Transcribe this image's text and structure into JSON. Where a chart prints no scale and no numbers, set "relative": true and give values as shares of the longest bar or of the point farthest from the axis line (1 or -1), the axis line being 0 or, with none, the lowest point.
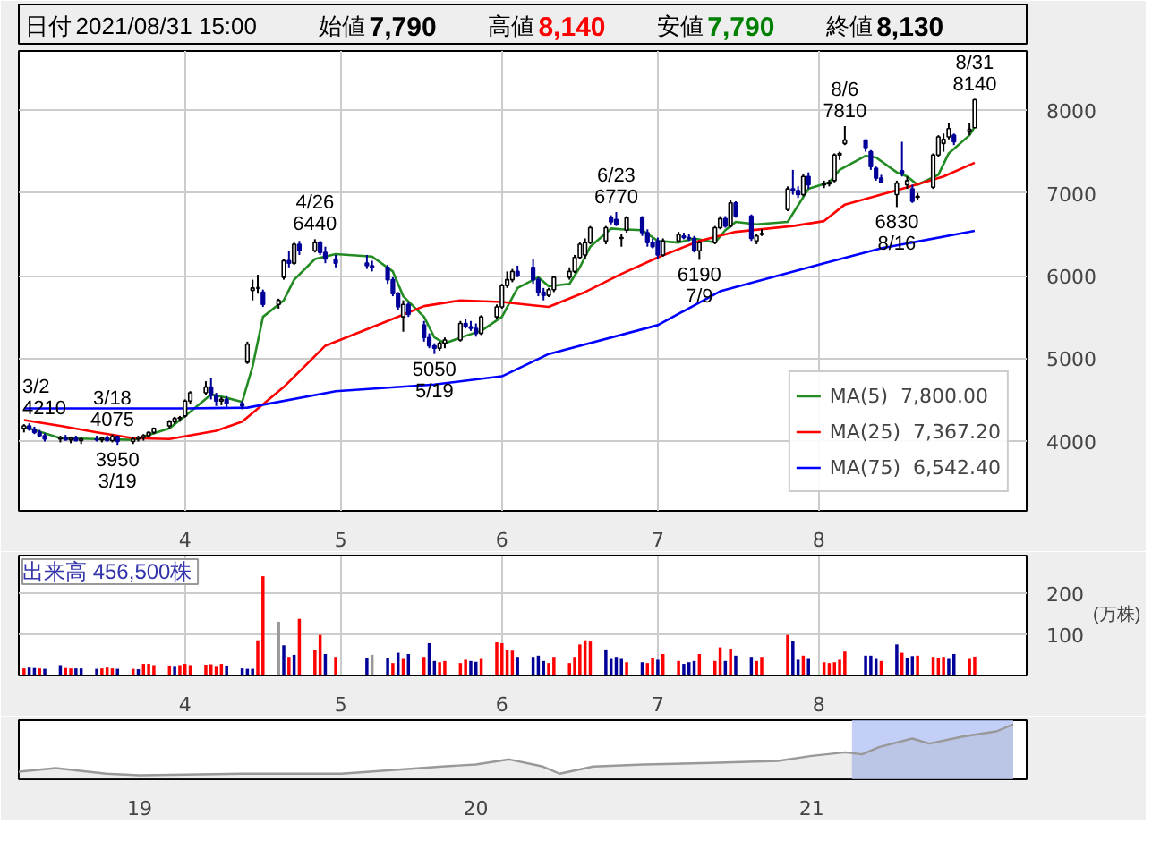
{
  "chart_data": [
    {
      "type": "other",
      "annotations": [
        "日付",
        "2021/08/31 15:00",
        "始値",
        "7,790",
        "高値",
        "8,140",
        "安値",
        "7,790",
        "終値",
        "8,130"
      ]
    },
    {
      "type": "candlestick",
      "xlim": [
        "2021-02-28",
        "2021-09-10"
      ],
      "ylim": [
        3150,
        8720
      ],
      "yticks": [
        4000,
        5000,
        6000,
        7000,
        8000
      ],
      "xticks": [
        {
          "value": "2021-04-01",
          "label": "4"
        },
        {
          "value": "2021-05-01",
          "label": "5"
        },
        {
          "value": "2021-06-01",
          "label": "6"
        },
        {
          "value": "2021-07-01",
          "label": "7"
        },
        {
          "value": "2021-08-01",
          "label": "8"
        }
      ],
      "grid": true,
      "legend": "bottom right",
      "x": [
        "2021-03-01",
        "2021-03-02",
        "2021-03-03",
        "2021-03-04",
        "2021-03-05",
        "2021-03-08",
        "2021-03-09",
        "2021-03-10",
        "2021-03-11",
        "2021-03-12",
        "2021-03-15",
        "2021-03-16",
        "2021-03-17",
        "2021-03-18",
        "2021-03-19",
        "2021-03-22",
        "2021-03-23",
        "2021-03-24",
        "2021-03-25",
        "2021-03-26",
        "2021-03-29",
        "2021-03-30",
        "2021-03-31",
        "2021-04-01",
        "2021-04-02",
        "2021-04-05",
        "2021-04-06",
        "2021-04-07",
        "2021-04-08",
        "2021-04-09",
        "2021-04-12",
        "2021-04-13",
        "2021-04-14",
        "2021-04-15",
        "2021-04-16",
        "2021-04-19",
        "2021-04-20",
        "2021-04-21",
        "2021-04-22",
        "2021-04-23",
        "2021-04-26",
        "2021-04-27",
        "2021-04-28",
        "2021-04-30",
        "2021-05-06",
        "2021-05-07",
        "2021-05-10",
        "2021-05-11",
        "2021-05-12",
        "2021-05-13",
        "2021-05-14",
        "2021-05-17",
        "2021-05-18",
        "2021-05-19",
        "2021-05-20",
        "2021-05-21",
        "2021-05-24",
        "2021-05-25",
        "2021-05-26",
        "2021-05-27",
        "2021-05-28",
        "2021-05-31",
        "2021-06-01",
        "2021-06-02",
        "2021-06-03",
        "2021-06-04",
        "2021-06-07",
        "2021-06-08",
        "2021-06-09",
        "2021-06-10",
        "2021-06-11",
        "2021-06-14",
        "2021-06-15",
        "2021-06-16",
        "2021-06-17",
        "2021-06-18",
        "2021-06-21",
        "2021-06-22",
        "2021-06-23",
        "2021-06-24",
        "2021-06-25",
        "2021-06-28",
        "2021-06-29",
        "2021-06-30",
        "2021-07-01",
        "2021-07-02",
        "2021-07-05",
        "2021-07-06",
        "2021-07-07",
        "2021-07-08",
        "2021-07-09",
        "2021-07-12",
        "2021-07-13",
        "2021-07-14",
        "2021-07-15",
        "2021-07-16",
        "2021-07-19",
        "2021-07-20",
        "2021-07-21",
        "2021-07-26",
        "2021-07-27",
        "2021-07-28",
        "2021-07-29",
        "2021-07-30",
        "2021-08-02",
        "2021-08-03",
        "2021-08-04",
        "2021-08-05",
        "2021-08-06",
        "2021-08-10",
        "2021-08-11",
        "2021-08-12",
        "2021-08-13",
        "2021-08-16",
        "2021-08-17",
        "2021-08-18",
        "2021-08-19",
        "2021-08-20",
        "2021-08-23",
        "2021-08-24",
        "2021-08-25",
        "2021-08-26",
        "2021-08-27",
        "2021-08-30",
        "2021-08-31"
      ],
      "ohlc": [
        [
          4150,
          4200,
          4100,
          4180
        ],
        [
          4180,
          4210,
          4120,
          4140
        ],
        [
          4140,
          4170,
          4080,
          4100
        ],
        [
          4100,
          4130,
          4040,
          4060
        ],
        [
          4060,
          4090,
          3990,
          4020
        ],
        [
          4020,
          4060,
          3980,
          4040
        ],
        [
          4040,
          4070,
          4000,
          4010
        ],
        [
          4010,
          4050,
          3970,
          4030
        ],
        [
          4030,
          4060,
          3990,
          4000
        ],
        [
          4000,
          4040,
          3960,
          4020
        ],
        [
          4020,
          4060,
          3990,
          4010
        ],
        [
          4010,
          4050,
          3980,
          4030
        ],
        [
          4030,
          4060,
          3990,
          4000
        ],
        [
          4000,
          4075,
          3980,
          4050
        ],
        [
          4050,
          4060,
          3950,
          3990
        ],
        [
          3990,
          4040,
          3960,
          4020
        ],
        [
          4020,
          4060,
          3990,
          4040
        ],
        [
          4040,
          4080,
          4000,
          4060
        ],
        [
          4060,
          4110,
          4040,
          4100
        ],
        [
          4100,
          4160,
          4080,
          4150
        ],
        [
          4180,
          4250,
          4150,
          4230
        ],
        [
          4230,
          4290,
          4200,
          4270
        ],
        [
          4270,
          4300,
          4230,
          4280
        ],
        [
          4300,
          4500,
          4280,
          4480
        ],
        [
          4480,
          4600,
          4450,
          4580
        ],
        [
          4580,
          4720,
          4550,
          4650
        ],
        [
          4650,
          4760,
          4500,
          4550
        ],
        [
          4550,
          4580,
          4420,
          4480
        ],
        [
          4480,
          4530,
          4430,
          4500
        ],
        [
          4500,
          4540,
          4410,
          4450
        ],
        [
          4450,
          4480,
          4380,
          4420
        ],
        [
          4950,
          5200,
          4930,
          5170
        ],
        [
          5820,
          5950,
          5700,
          5850
        ],
        [
          5850,
          6010,
          5780,
          5850
        ],
        [
          5800,
          5830,
          5620,
          5650
        ],
        [
          5650,
          5720,
          5600,
          5700
        ],
        [
          5980,
          6200,
          5950,
          6180
        ],
        [
          6180,
          6300,
          6100,
          6150
        ],
        [
          6150,
          6400,
          6130,
          6380
        ],
        [
          6380,
          6420,
          6250,
          6300
        ],
        [
          6300,
          6440,
          6280,
          6400
        ],
        [
          6400,
          6420,
          6250,
          6280
        ],
        [
          6280,
          6350,
          6150,
          6200
        ],
        [
          6200,
          6250,
          6100,
          6150
        ],
        [
          6150,
          6250,
          6080,
          6120
        ],
        [
          6120,
          6180,
          6050,
          6100
        ],
        [
          6100,
          6130,
          5900,
          5950
        ],
        [
          5950,
          5980,
          5750,
          5780
        ],
        [
          5780,
          5800,
          5580,
          5620
        ],
        [
          5500,
          5700,
          5320,
          5650
        ],
        [
          5650,
          5680,
          5500,
          5530
        ],
        [
          5400,
          5450,
          5200,
          5250
        ],
        [
          5250,
          5300,
          5120,
          5150
        ],
        [
          5150,
          5180,
          5050,
          5120
        ],
        [
          5120,
          5200,
          5090,
          5180
        ],
        [
          5180,
          5250,
          5120,
          5220
        ],
        [
          5220,
          5450,
          5200,
          5420
        ],
        [
          5420,
          5480,
          5360,
          5380
        ],
        [
          5380,
          5450,
          5330,
          5360
        ],
        [
          5360,
          5420,
          5260,
          5300
        ],
        [
          5300,
          5520,
          5280,
          5500
        ],
        [
          5500,
          5650,
          5480,
          5620
        ],
        [
          5620,
          5900,
          5600,
          5880
        ],
        [
          5880,
          6050,
          5850,
          5950
        ],
        [
          5950,
          6080,
          5920,
          6050
        ],
        [
          6050,
          6120,
          5980,
          6000
        ],
        [
          6100,
          6200,
          5900,
          5950
        ],
        [
          5950,
          5980,
          5750,
          5800
        ],
        [
          5800,
          5850,
          5700,
          5760
        ],
        [
          5760,
          5850,
          5740,
          5830
        ],
        [
          5830,
          6000,
          5800,
          5980
        ],
        [
          5980,
          6100,
          5950,
          6050
        ],
        [
          6050,
          6250,
          6030,
          6220
        ],
        [
          6220,
          6400,
          6200,
          6380
        ],
        [
          6250,
          6450,
          6200,
          6400
        ],
        [
          6400,
          6600,
          6380,
          6580
        ],
        [
          6420,
          6600,
          6380,
          6580
        ],
        [
          6700,
          6730,
          6620,
          6650
        ],
        [
          6680,
          6770,
          6600,
          6620
        ],
        [
          6450,
          6500,
          6350,
          6460
        ],
        [
          6550,
          6720,
          6520,
          6700
        ],
        [
          6700,
          6720,
          6480,
          6520
        ],
        [
          6520,
          6560,
          6350,
          6400
        ],
        [
          6400,
          6450,
          6330,
          6350
        ],
        [
          6420,
          6460,
          6200,
          6250
        ],
        [
          6250,
          6450,
          6230,
          6420
        ],
        [
          6420,
          6530,
          6400,
          6500
        ],
        [
          6480,
          6520,
          6440,
          6460
        ],
        [
          6460,
          6500,
          6420,
          6450
        ],
        [
          6450,
          6480,
          6280,
          6300
        ],
        [
          6300,
          6420,
          6190,
          6400
        ],
        [
          6400,
          6600,
          6380,
          6580
        ],
        [
          6580,
          6720,
          6560,
          6690
        ],
        [
          6690,
          6720,
          6580,
          6600
        ],
        [
          6600,
          6920,
          6580,
          6880
        ],
        [
          6880,
          6900,
          6700,
          6720
        ],
        [
          6720,
          6740,
          6420,
          6450
        ],
        [
          6420,
          6500,
          6380,
          6480
        ],
        [
          6500,
          6560,
          6480,
          6510
        ],
        [
          6800,
          7080,
          6780,
          7050
        ],
        [
          7050,
          7280,
          6980,
          7030
        ],
        [
          7030,
          7080,
          6940,
          6980
        ],
        [
          6980,
          7230,
          6960,
          7200
        ],
        [
          7200,
          7250,
          7050,
          7100
        ],
        [
          7100,
          7150,
          7060,
          7110
        ],
        [
          7110,
          7160,
          7080,
          7130
        ],
        [
          7150,
          7480,
          7130,
          7460
        ],
        [
          7460,
          7500,
          7400,
          7480
        ],
        [
          7600,
          7810,
          7580,
          7640
        ],
        [
          7640,
          7650,
          7500,
          7550
        ],
        [
          7500,
          7520,
          7280,
          7320
        ],
        [
          7300,
          7320,
          7150,
          7180
        ],
        [
          7180,
          7220,
          7120,
          7130
        ],
        [
          6980,
          7150,
          6830,
          7120
        ],
        [
          7270,
          7620,
          7200,
          7240
        ],
        [
          7100,
          7200,
          7050,
          7150
        ],
        [
          7050,
          7100,
          6880,
          6900
        ],
        [
          6950,
          7000,
          6920,
          6960
        ],
        [
          7070,
          7480,
          7050,
          7460
        ],
        [
          7460,
          7700,
          7440,
          7680
        ],
        [
          7600,
          7720,
          7500,
          7650
        ],
        [
          7680,
          7850,
          7650,
          7780
        ],
        [
          7700,
          7720,
          7580,
          7620
        ],
        [
          7750,
          7850,
          7700,
          7770
        ],
        [
          7790,
          8140,
          7790,
          8130
        ]
      ],
      "series": [
        {
          "name": "MA(5)  7,800.00",
          "type": "line",
          "color": "#228b22",
          "x": [
            "2021-03-01",
            "2021-03-08",
            "2021-03-15",
            "2021-03-22",
            "2021-03-29",
            "2021-04-02",
            "2021-04-06",
            "2021-04-09",
            "2021-04-12",
            "2021-04-14",
            "2021-04-16",
            "2021-04-20",
            "2021-04-22",
            "2021-04-26",
            "2021-04-30",
            "2021-05-07",
            "2021-05-11",
            "2021-05-13",
            "2021-05-17",
            "2021-05-19",
            "2021-05-21",
            "2021-05-25",
            "2021-05-28",
            "2021-06-01",
            "2021-06-04",
            "2021-06-08",
            "2021-06-10",
            "2021-06-14",
            "2021-06-16",
            "2021-06-18",
            "2021-06-22",
            "2021-06-24",
            "2021-06-28",
            "2021-07-01",
            "2021-07-05",
            "2021-07-08",
            "2021-07-12",
            "2021-07-14",
            "2021-07-16",
            "2021-07-20",
            "2021-07-26",
            "2021-07-28",
            "2021-07-30",
            "2021-08-03",
            "2021-08-05",
            "2021-08-10",
            "2021-08-12",
            "2021-08-16",
            "2021-08-18",
            "2021-08-20",
            "2021-08-24",
            "2021-08-26",
            "2021-08-30",
            "2021-08-31"
          ],
          "values": [
            4170,
            4030,
            4020,
            4010,
            4150,
            4350,
            4560,
            4520,
            4470,
            4900,
            5500,
            5700,
            5950,
            6200,
            6260,
            6230,
            6050,
            5750,
            5500,
            5250,
            5180,
            5270,
            5330,
            5500,
            5850,
            5980,
            5870,
            5900,
            6100,
            6350,
            6570,
            6560,
            6550,
            6420,
            6400,
            6450,
            6400,
            6550,
            6650,
            6620,
            6650,
            6850,
            7050,
            7130,
            7280,
            7450,
            7430,
            7250,
            7200,
            7100,
            7220,
            7480,
            7700,
            7800
          ]
        },
        {
          "name": "MA(25)  7,367.20",
          "type": "line",
          "color": "#ff0000",
          "x": [
            "2021-03-01",
            "2021-03-08",
            "2021-03-15",
            "2021-03-22",
            "2021-03-29",
            "2021-04-07",
            "2021-04-12",
            "2021-04-20",
            "2021-04-28",
            "2021-05-10",
            "2021-05-17",
            "2021-05-24",
            "2021-06-01",
            "2021-06-07",
            "2021-06-10",
            "2021-06-17",
            "2021-06-24",
            "2021-07-01",
            "2021-07-09",
            "2021-07-16",
            "2021-07-27",
            "2021-08-02",
            "2021-08-06",
            "2021-08-17",
            "2021-08-25",
            "2021-08-31"
          ],
          "values": [
            4250,
            4180,
            4100,
            4030,
            4020,
            4120,
            4230,
            4650,
            5150,
            5450,
            5630,
            5700,
            5680,
            5640,
            5620,
            5800,
            6020,
            6220,
            6420,
            6530,
            6600,
            6660,
            6860,
            7050,
            7200,
            7367.2
          ]
        },
        {
          "name": "MA(75)  6,542.40",
          "type": "line",
          "color": "#0000ff",
          "x": [
            "2021-03-01",
            "2021-03-15",
            "2021-04-01",
            "2021-04-13",
            "2021-04-30",
            "2021-05-19",
            "2021-06-01",
            "2021-06-10",
            "2021-07-01",
            "2021-07-13",
            "2021-08-02",
            "2021-08-13",
            "2021-08-31"
          ],
          "values": [
            4390,
            4390,
            4390,
            4400,
            4600,
            4680,
            4780,
            5050,
            5400,
            5810,
            6150,
            6330,
            6542.4
          ]
        }
      ],
      "annotations": [
        {
          "text": "3/2\n4210",
          "x": "2021-03-02",
          "y": 4210
        },
        {
          "text": "3/18\n4075",
          "x": "2021-03-18",
          "y": 4075
        },
        {
          "text": "3950\n3/19",
          "x": "2021-03-19",
          "y": 3950
        },
        {
          "text": "4/26\n6440",
          "x": "2021-04-26",
          "y": 6440
        },
        {
          "text": "5050\n5/19",
          "x": "2021-05-19",
          "y": 5050
        },
        {
          "text": "6/23\n6770",
          "x": "2021-06-23",
          "y": 6770
        },
        {
          "text": "6190\n7/9",
          "x": "2021-07-09",
          "y": 6190
        },
        {
          "text": "8/6\n7810",
          "x": "2021-08-06",
          "y": 7810
        },
        {
          "text": "6830\n8/16",
          "x": "2021-08-16",
          "y": 6830
        },
        {
          "text": "8/31\n8140",
          "x": "2021-08-31",
          "y": 8140
        }
      ]
    },
    {
      "type": "bar",
      "title": "出来高  456,500株",
      "ylabel": "(万株)",
      "xlim": [
        "2021-02-28",
        "2021-09-10"
      ],
      "ylim": [
        0,
        290
      ],
      "yticks": [
        100,
        200
      ],
      "grid": true,
      "xticks": [
        {
          "value": "2021-04-01",
          "label": "4"
        },
        {
          "value": "2021-05-01",
          "label": "5"
        },
        {
          "value": "2021-06-01",
          "label": "6"
        },
        {
          "value": "2021-07-01",
          "label": "7"
        },
        {
          "value": "2021-08-01",
          "label": "8"
        }
      ],
      "x": [
        "2021-03-01",
        "2021-03-02",
        "2021-03-03",
        "2021-03-04",
        "2021-03-05",
        "2021-03-08",
        "2021-03-09",
        "2021-03-10",
        "2021-03-11",
        "2021-03-12",
        "2021-03-15",
        "2021-03-16",
        "2021-03-17",
        "2021-03-18",
        "2021-03-19",
        "2021-03-22",
        "2021-03-23",
        "2021-03-24",
        "2021-03-25",
        "2021-03-26",
        "2021-03-29",
        "2021-03-30",
        "2021-03-31",
        "2021-04-01",
        "2021-04-02",
        "2021-04-05",
        "2021-04-06",
        "2021-04-07",
        "2021-04-08",
        "2021-04-09",
        "2021-04-12",
        "2021-04-13",
        "2021-04-14",
        "2021-04-15",
        "2021-04-16",
        "2021-04-19",
        "2021-04-20",
        "2021-04-21",
        "2021-04-22",
        "2021-04-23",
        "2021-04-26",
        "2021-04-27",
        "2021-04-28",
        "2021-04-30",
        "2021-05-06",
        "2021-05-07",
        "2021-05-10",
        "2021-05-11",
        "2021-05-12",
        "2021-05-13",
        "2021-05-14",
        "2021-05-17",
        "2021-05-18",
        "2021-05-19",
        "2021-05-20",
        "2021-05-21",
        "2021-05-24",
        "2021-05-25",
        "2021-05-26",
        "2021-05-27",
        "2021-05-28",
        "2021-05-31",
        "2021-06-01",
        "2021-06-02",
        "2021-06-03",
        "2021-06-04",
        "2021-06-07",
        "2021-06-08",
        "2021-06-09",
        "2021-06-10",
        "2021-06-11",
        "2021-06-14",
        "2021-06-15",
        "2021-06-16",
        "2021-06-17",
        "2021-06-18",
        "2021-06-21",
        "2021-06-22",
        "2021-06-23",
        "2021-06-24",
        "2021-06-25",
        "2021-06-28",
        "2021-06-29",
        "2021-06-30",
        "2021-07-01",
        "2021-07-02",
        "2021-07-05",
        "2021-07-06",
        "2021-07-07",
        "2021-07-08",
        "2021-07-09",
        "2021-07-12",
        "2021-07-13",
        "2021-07-14",
        "2021-07-15",
        "2021-07-16",
        "2021-07-19",
        "2021-07-20",
        "2021-07-21",
        "2021-07-26",
        "2021-07-27",
        "2021-07-28",
        "2021-07-29",
        "2021-07-30",
        "2021-08-02",
        "2021-08-03",
        "2021-08-04",
        "2021-08-05",
        "2021-08-06",
        "2021-08-10",
        "2021-08-11",
        "2021-08-12",
        "2021-08-13",
        "2021-08-16",
        "2021-08-17",
        "2021-08-18",
        "2021-08-19",
        "2021-08-20",
        "2021-08-23",
        "2021-08-24",
        "2021-08-25",
        "2021-08-26",
        "2021-08-27",
        "2021-08-30",
        "2021-08-31"
      ],
      "values": [
        17,
        19,
        18,
        17,
        16,
        25,
        18,
        17,
        17,
        17,
        16,
        17,
        19,
        17,
        16,
        16,
        15,
        28,
        28,
        25,
        24,
        23,
        25,
        28,
        25,
        26,
        27,
        23,
        28,
        24,
        17,
        16,
        16,
        85,
        240,
        130,
        73,
        45,
        50,
        137,
        62,
        98,
        52,
        45,
        42,
        50,
        42,
        30,
        55,
        40,
        52,
        45,
        78,
        35,
        32,
        35,
        30,
        38,
        35,
        33,
        40,
        80,
        78,
        62,
        60,
        45,
        45,
        48,
        35,
        30,
        45,
        30,
        45,
        75,
        85,
        82,
        63,
        40,
        45,
        40,
        32,
        32,
        30,
        42,
        38,
        52,
        35,
        28,
        32,
        35,
        52,
        35,
        68,
        35,
        65,
        48,
        45,
        35,
        45,
        98,
        83,
        38,
        48,
        40,
        32,
        30,
        32,
        38,
        58,
        48,
        48,
        40,
        35,
        75,
        55,
        42,
        47,
        48,
        45,
        42,
        45,
        40,
        52,
        40,
        45.65
      ],
      "colors": [
        "#ff0000",
        "#000099",
        "#000099",
        "#ff0000",
        "#000099",
        "#000099",
        "#ff0000",
        "#ff0000",
        "#000099",
        "#000099",
        "#000099",
        "#ff0000",
        "#ff0000",
        "#ff0000",
        "#000099",
        "#ff0000",
        "#000099",
        "#ff0000",
        "#ff0000",
        "#ff0000",
        "#ff0000",
        "#000099",
        "#ff0000",
        "#ff0000",
        "#ff0000",
        "#ff0000",
        "#ff0000",
        "#ff0000",
        "#ff0000",
        "#000099",
        "#000099",
        "#000099",
        "#000099",
        "#ff0000",
        "#ff0000",
        "#999999",
        "#000099",
        "#ff0000",
        "#000099",
        "#ff0000",
        "#ff0000",
        "#ff0000",
        "#000099",
        "#ff0000",
        "#000099",
        "#999999",
        "#000099",
        "#ff0000",
        "#000099",
        "#ff0000",
        "#000099",
        "#ff0000",
        "#000099",
        "#000099",
        "#ff0000",
        "#ff0000",
        "#ff0000",
        "#ff0000",
        "#000099",
        "#000099",
        "#ff0000",
        "#ff0000",
        "#ff0000",
        "#ff0000",
        "#ff0000",
        "#000099",
        "#000099",
        "#000099",
        "#000099",
        "#ff0000",
        "#ff0000",
        "#ff0000",
        "#ff0000",
        "#ff0000",
        "#ff0000",
        "#ff0000",
        "#000099",
        "#000099",
        "#000099",
        "#000099",
        "#ff0000",
        "#000099",
        "#ff0000",
        "#ff0000",
        "#000099",
        "#ff0000",
        "#ff0000",
        "#000099",
        "#000099",
        "#000099",
        "#ff0000",
        "#ff0000",
        "#ff0000",
        "#000099",
        "#ff0000",
        "#000099",
        "#000099",
        "#ff0000",
        "#ff0000",
        "#ff0000",
        "#000099",
        "#000099",
        "#ff0000",
        "#000099",
        "#ff0000",
        "#ff0000",
        "#ff0000",
        "#ff0000",
        "#ff0000",
        "#000099",
        "#000099",
        "#000099",
        "#ff0000",
        "#000099",
        "#ff0000",
        "#000099",
        "#000099",
        "#ff0000",
        "#ff0000",
        "#ff0000",
        "#ff0000",
        "#000099",
        "#000099",
        "#ff0000",
        "#ff0000"
      ]
    },
    {
      "type": "area",
      "relative": true,
      "color": "#999999",
      "xlim": [
        18.64,
        21.64
      ],
      "xticks": [
        {
          "value": 19,
          "label": "19"
        },
        {
          "value": 20,
          "label": "20"
        },
        {
          "value": 21,
          "label": "21"
        }
      ],
      "x": [
        18.64,
        18.75,
        18.9,
        19.0,
        19.3,
        19.6,
        19.9,
        20.0,
        20.1,
        20.2,
        20.25,
        20.35,
        20.5,
        20.7,
        20.9,
        21.0,
        21.1,
        21.15,
        21.2,
        21.3,
        21.35,
        21.45,
        21.55,
        21.6
      ],
      "values": [
        0.07,
        0.14,
        0.03,
        0.0,
        0.03,
        0.03,
        0.17,
        0.21,
        0.31,
        0.17,
        0.03,
        0.17,
        0.21,
        0.24,
        0.28,
        0.38,
        0.45,
        0.41,
        0.55,
        0.72,
        0.62,
        0.76,
        0.86,
        1.0
      ],
      "bands": [
        {
          "axis": "x",
          "from": 21.12,
          "to": 21.6,
          "color": "#b4c3f5"
        }
      ]
    }
  ]
}
